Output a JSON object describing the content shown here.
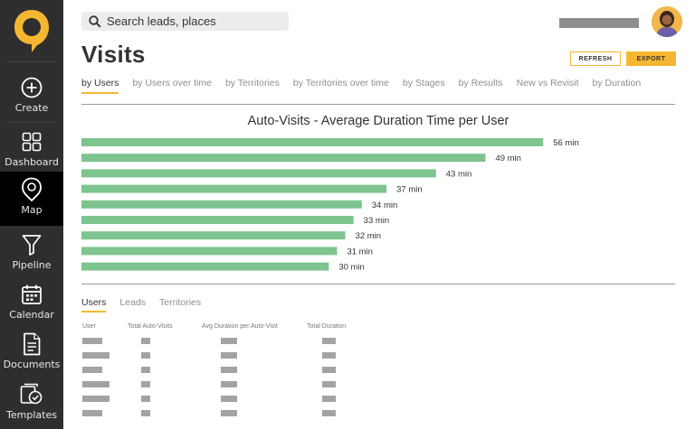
{
  "sidebar": {
    "logo_icon": "map-pin-logo-icon",
    "items": [
      {
        "label": "Create",
        "icon": "plus-circle-icon"
      },
      {
        "label": "Dashboard",
        "icon": "grid-icon"
      },
      {
        "label": "Map",
        "icon": "map-pin-icon",
        "active": true
      },
      {
        "label": "Pipeline",
        "icon": "funnel-icon"
      },
      {
        "label": "Calendar",
        "icon": "calendar-icon"
      },
      {
        "label": "Documents",
        "icon": "document-icon"
      },
      {
        "label": "Templates",
        "icon": "templates-icon"
      }
    ]
  },
  "header": {
    "search_placeholder": "Search leads, places",
    "title": "Visits",
    "refresh_label": "REFRESH",
    "export_label": "EXPORT"
  },
  "tabs": [
    {
      "label": "by Users",
      "active": true
    },
    {
      "label": "by Users over time"
    },
    {
      "label": "by Territories"
    },
    {
      "label": "by Territories over time"
    },
    {
      "label": "by Stages"
    },
    {
      "label": "by Results"
    },
    {
      "label": "New vs Revisit"
    },
    {
      "label": "by Duration"
    }
  ],
  "chart_data": {
    "type": "bar",
    "orientation": "horizontal",
    "title": "Auto-Visits - Average Duration Time per User",
    "values": [
      56,
      49,
      43,
      37,
      34,
      33,
      32,
      31,
      30
    ],
    "value_labels": [
      "56 min",
      "49 min",
      "43 min",
      "37 min",
      "34 min",
      "33 min",
      "32 min",
      "31 min",
      "30 min"
    ],
    "unit": "min",
    "bar_color": "#7dc48f",
    "xlim": [
      0,
      72
    ]
  },
  "subtabs": [
    {
      "label": "Users",
      "active": true
    },
    {
      "label": "Leads"
    },
    {
      "label": "Territories"
    }
  ],
  "table": {
    "headers": [
      "User",
      "Total Auto-Visits",
      "Avg Duration per Auto-Visit",
      "Total Duration"
    ],
    "row_count": 6
  },
  "colors": {
    "accent": "#f5b731",
    "sidebar_bg": "#2e2e2e",
    "sidebar_active": "#000000"
  }
}
